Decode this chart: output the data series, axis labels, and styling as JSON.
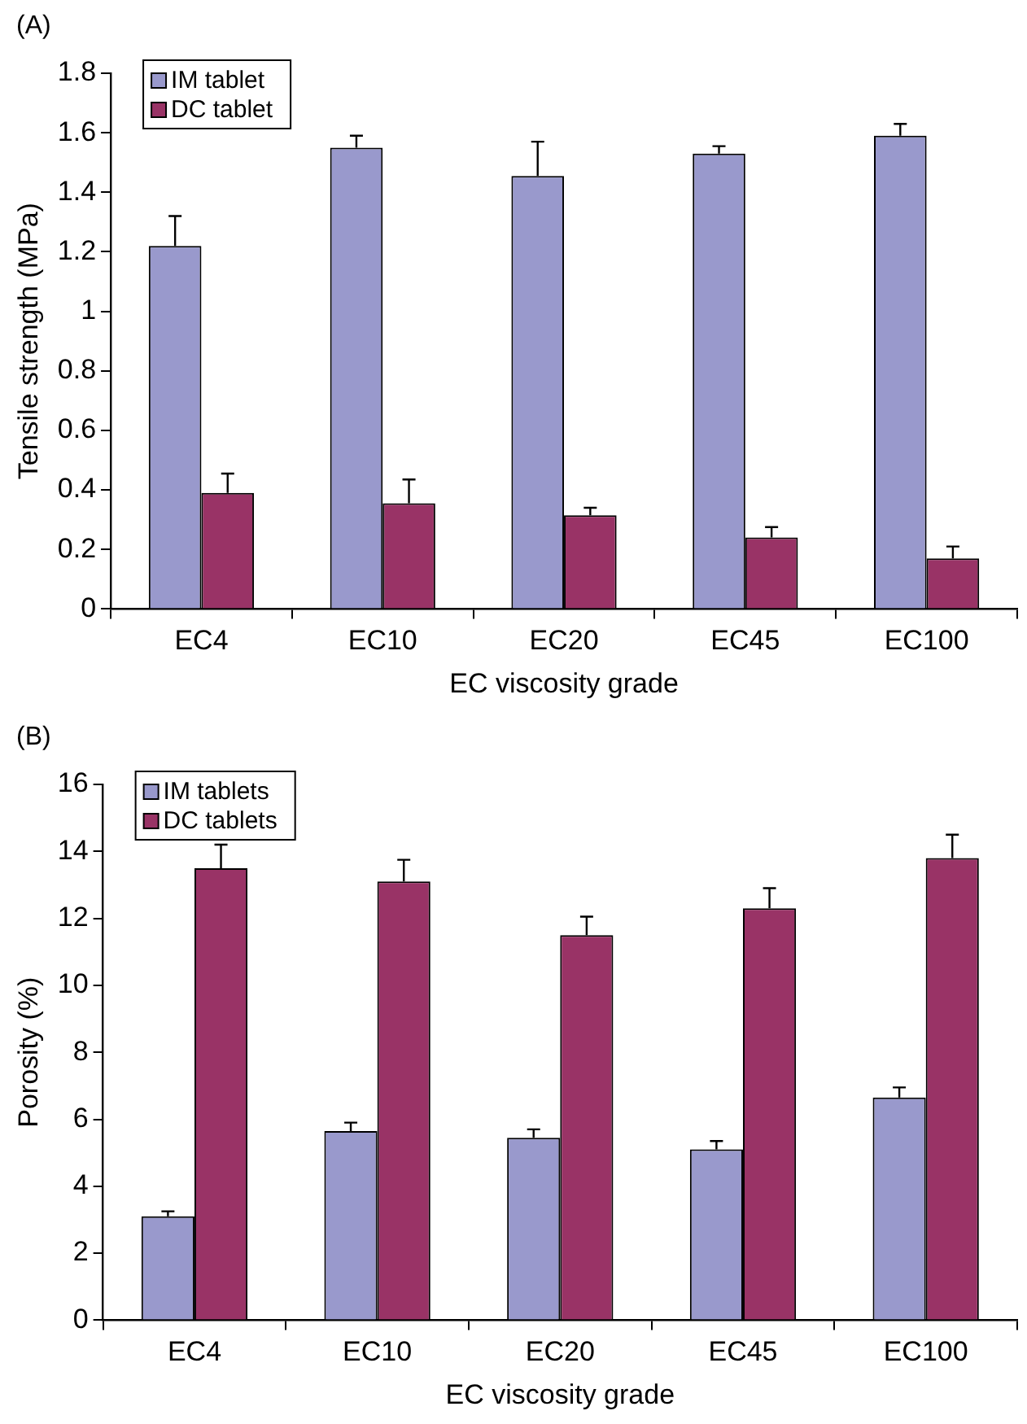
{
  "chart_data": [
    {
      "type": "bar",
      "title": "(A)",
      "xlabel": "EC viscosity grade",
      "ylabel": "Tensile strength (MPa)",
      "categories": [
        "EC4",
        "EC10",
        "EC20",
        "EC45",
        "EC100"
      ],
      "series": [
        {
          "name": "IM tablet",
          "color": "#9999cc",
          "values": [
            1.22,
            1.55,
            1.455,
            1.53,
            1.59
          ],
          "errors": [
            [
              1.22,
              1.32
            ],
            [
              1.55,
              1.59
            ],
            [
              1.455,
              1.57
            ],
            [
              1.53,
              1.555
            ],
            [
              1.59,
              1.63
            ]
          ]
        },
        {
          "name": "DC tablet",
          "color": "#993366",
          "values": [
            0.39,
            0.355,
            0.315,
            0.24,
            0.17
          ],
          "errors": [
            [
              0.39,
              0.455
            ],
            [
              0.355,
              0.435
            ],
            [
              0.315,
              0.34
            ],
            [
              0.24,
              0.275
            ],
            [
              0.17,
              0.21
            ]
          ]
        }
      ],
      "ylim": [
        0,
        1.8
      ],
      "yticks": [
        0,
        0.2,
        0.4,
        0.6,
        0.8,
        1,
        1.2,
        1.4,
        1.6,
        1.8
      ],
      "grid": false,
      "legend": "top left"
    },
    {
      "type": "bar",
      "title": "(B)",
      "xlabel": "EC viscosity grade",
      "ylabel": "Porosity (%)",
      "categories": [
        "EC4",
        "EC10",
        "EC20",
        "EC45",
        "EC100"
      ],
      "series": [
        {
          "name": "IM tablets",
          "color": "#9999cc",
          "values": [
            3.1,
            5.65,
            5.45,
            5.1,
            6.65
          ],
          "errors": [
            [
              3.1,
              3.25
            ],
            [
              5.65,
              5.9
            ],
            [
              5.45,
              5.7
            ],
            [
              5.1,
              5.35
            ],
            [
              6.65,
              6.95
            ]
          ]
        },
        {
          "name": "DC tablets",
          "color": "#993366",
          "values": [
            13.5,
            13.1,
            11.5,
            12.3,
            13.8
          ],
          "errors": [
            [
              13.5,
              14.2
            ],
            [
              13.1,
              13.75
            ],
            [
              11.5,
              12.05
            ],
            [
              12.3,
              12.9
            ],
            [
              13.8,
              14.5
            ]
          ]
        }
      ],
      "ylim": [
        0,
        16
      ],
      "yticks": [
        0,
        2,
        4,
        6,
        8,
        10,
        12,
        14,
        16
      ],
      "grid": false,
      "legend": "top left"
    }
  ]
}
